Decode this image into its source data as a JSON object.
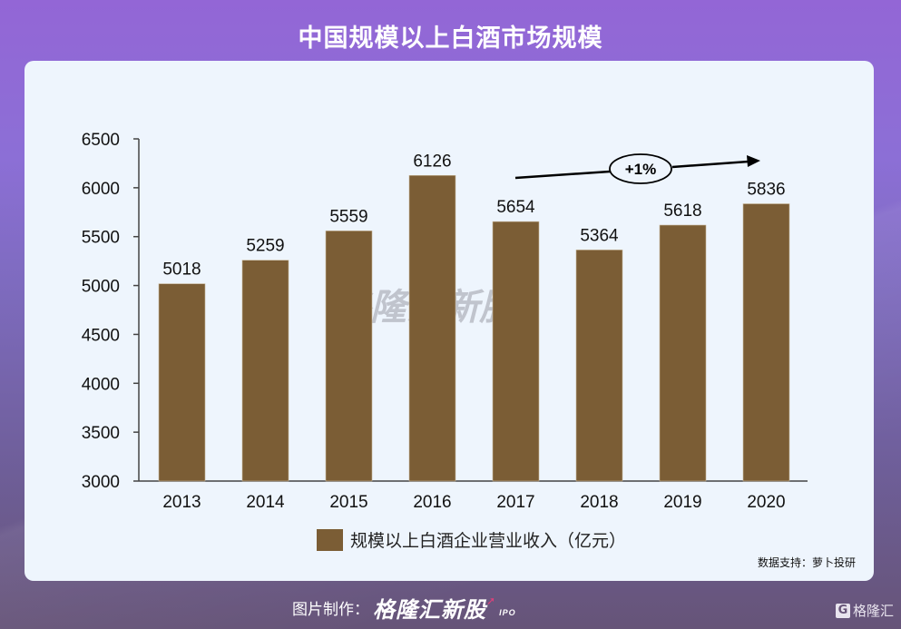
{
  "header": {
    "title": "中国规模以上白酒市场规模"
  },
  "chart_data": {
    "type": "bar",
    "title": "中国规模以上白酒市场规模",
    "categories": [
      "2013",
      "2014",
      "2015",
      "2016",
      "2017",
      "2018",
      "2019",
      "2020"
    ],
    "series": [
      {
        "name": "规模以上白酒企业营业收入（亿元）",
        "values": [
          5018,
          5259,
          5559,
          6126,
          5654,
          5364,
          5618,
          5836
        ],
        "color": "#7b5d35"
      }
    ],
    "data_labels": [
      "5018",
      "5259",
      "5559",
      "6126",
      "5654",
      "5364",
      "5618",
      "5836"
    ],
    "y_ticks": [
      "6500",
      "6000",
      "5500",
      "5000",
      "4500",
      "4000",
      "3500",
      "3000"
    ],
    "ylim": [
      3000,
      6500
    ],
    "xlabel": "",
    "ylabel": "",
    "grid": false,
    "legend_position": "bottom",
    "annotations": [
      {
        "type": "arrow",
        "label": "+1%",
        "from": "2017",
        "to": "2020"
      }
    ]
  },
  "legend": {
    "label": "规模以上白酒企业营业收入（亿元）"
  },
  "annotation": {
    "label": "+1%"
  },
  "watermark": {
    "brand": "格隆汇新股",
    "sub": "IPO"
  },
  "source": {
    "label": "数据支持：萝卜投研"
  },
  "footer": {
    "made_by_label": "图片制作：",
    "brand": "格隆汇新股",
    "brand_sub": "IPO",
    "logo_text": "格隆汇",
    "logo_letter": "G"
  },
  "colors": {
    "bar": "#7b5d35",
    "card_bg": "#eef5fd",
    "bg_top": "#9366d6",
    "bg_bottom": "#665478"
  }
}
